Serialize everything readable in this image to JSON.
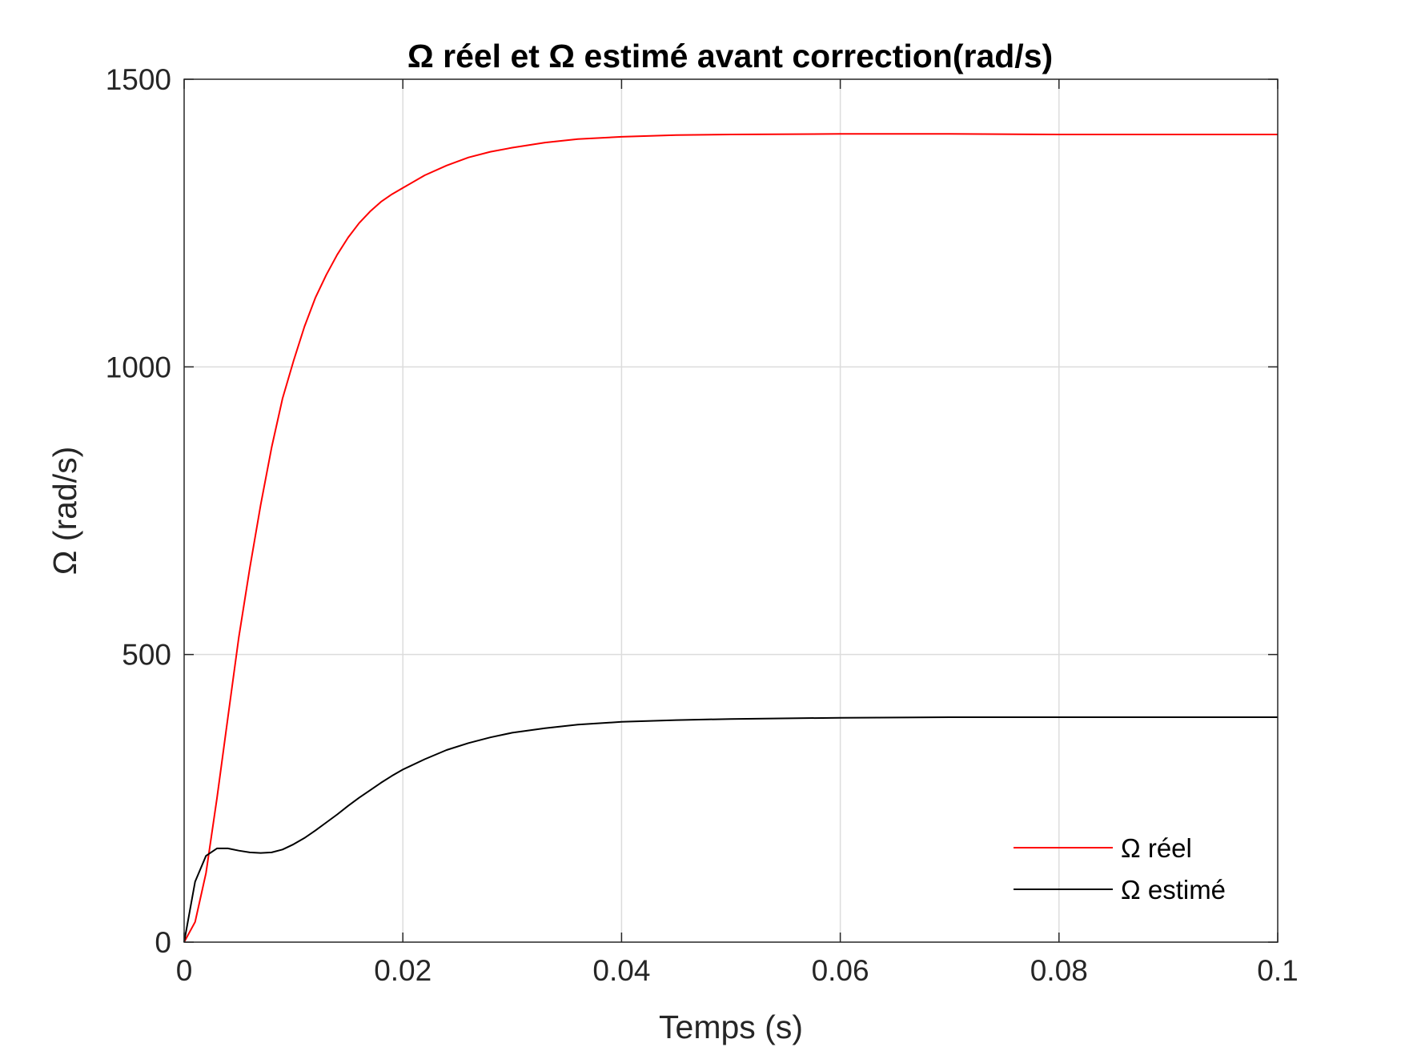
{
  "chart_data": {
    "type": "line",
    "title": "Ω réel et Ω estimé avant correction(rad/s)",
    "xlabel": "Temps (s)",
    "ylabel": "Ω (rad/s)",
    "xlim": [
      0,
      0.1
    ],
    "ylim": [
      0,
      1500
    ],
    "xticks": [
      0,
      0.02,
      0.04,
      0.06,
      0.08,
      0.1
    ],
    "xtick_labels": [
      "0",
      "0.02",
      "0.04",
      "0.06",
      "0.08",
      "0.1"
    ],
    "yticks": [
      0,
      500,
      1000,
      1500
    ],
    "ytick_labels": [
      "0",
      "500",
      "1000",
      "1500"
    ],
    "grid": true,
    "legend_position": "bottom-right",
    "series": [
      {
        "name": "Ω réel",
        "color": "#ff0000",
        "x": [
          0,
          0.001,
          0.002,
          0.003,
          0.004,
          0.005,
          0.006,
          0.007,
          0.008,
          0.009,
          0.01,
          0.011,
          0.012,
          0.013,
          0.014,
          0.015,
          0.016,
          0.017,
          0.018,
          0.019,
          0.02,
          0.022,
          0.024,
          0.026,
          0.028,
          0.03,
          0.033,
          0.036,
          0.04,
          0.045,
          0.05,
          0.06,
          0.07,
          0.08,
          0.09,
          0.1
        ],
        "y": [
          0,
          35,
          120,
          250,
          390,
          530,
          650,
          760,
          860,
          945,
          1010,
          1070,
          1120,
          1160,
          1195,
          1225,
          1250,
          1270,
          1287,
          1300,
          1311,
          1333,
          1350,
          1364,
          1374,
          1381,
          1390,
          1396,
          1400,
          1403,
          1404,
          1405,
          1405,
          1404,
          1404,
          1404
        ]
      },
      {
        "name": "Ω estimé",
        "color": "#000000",
        "x": [
          0,
          0.001,
          0.002,
          0.003,
          0.004,
          0.005,
          0.006,
          0.007,
          0.008,
          0.009,
          0.01,
          0.011,
          0.012,
          0.013,
          0.014,
          0.015,
          0.016,
          0.017,
          0.018,
          0.019,
          0.02,
          0.022,
          0.024,
          0.026,
          0.028,
          0.03,
          0.033,
          0.036,
          0.04,
          0.045,
          0.05,
          0.06,
          0.07,
          0.08,
          0.09,
          0.1
        ],
        "y": [
          0,
          105,
          150,
          163,
          163,
          159,
          156,
          155,
          156,
          161,
          170,
          181,
          194,
          208,
          222,
          237,
          251,
          264,
          277,
          289,
          300,
          318,
          334,
          346,
          356,
          364,
          372,
          378,
          383,
          386,
          388,
          390,
          391,
          391,
          391,
          391
        ]
      }
    ]
  }
}
